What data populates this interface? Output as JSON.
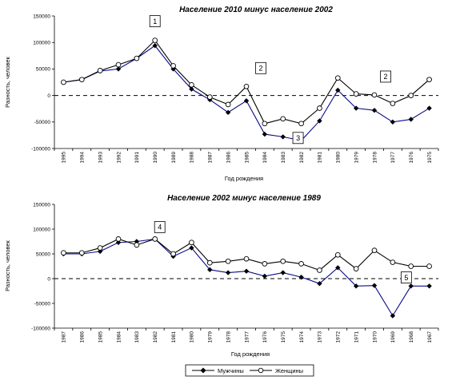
{
  "legend": {
    "men": "Мужчины",
    "women": "Женщины"
  },
  "chart_data": [
    {
      "type": "line",
      "title": "Население 2010 минус население 2002",
      "xlabel": "Год рождения",
      "ylabel": "Разность, человек",
      "ylim": [
        -100000,
        150000
      ],
      "yticks": [
        -100000,
        -50000,
        0,
        50000,
        100000,
        150000
      ],
      "categories": [
        "1995",
        "1994",
        "1993",
        "1992",
        "1991",
        "1990",
        "1989",
        "1988",
        "1987",
        "1986",
        "1985",
        "1984",
        "1983",
        "1982",
        "1981",
        "1980",
        "1979",
        "1978",
        "1977",
        "1976",
        "1975"
      ],
      "series": [
        {
          "name": "Мужчины",
          "marker": "filled-diamond",
          "values": [
            25000,
            30000,
            46000,
            50000,
            70000,
            94000,
            50000,
            12000,
            -8000,
            -32000,
            -10000,
            -73000,
            -78000,
            -85000,
            -48000,
            10000,
            -24000,
            -28000,
            -50000,
            -45000,
            -24000
          ]
        },
        {
          "name": "Женщины",
          "marker": "open-circle",
          "values": [
            25000,
            30000,
            47000,
            58000,
            70000,
            104000,
            56000,
            20000,
            -3000,
            -17000,
            17000,
            -53000,
            -44000,
            -53000,
            -24000,
            33000,
            3000,
            1000,
            -15000,
            0,
            30000
          ]
        }
      ],
      "reference_line": 0,
      "callouts": [
        {
          "label": "1",
          "category": "1990"
        },
        {
          "label": "2",
          "category": "1985"
        },
        {
          "label": "3",
          "category": "1982"
        },
        {
          "label": "2",
          "category": "1978"
        }
      ]
    },
    {
      "type": "line",
      "title": "Население 2002 минус население 1989",
      "xlabel": "Год рождения",
      "ylabel": "Разность, человек",
      "ylim": [
        -100000,
        150000
      ],
      "yticks": [
        -100000,
        -50000,
        0,
        50000,
        100000,
        150000
      ],
      "categories": [
        "1987",
        "1986",
        "1985",
        "1984",
        "1983",
        "1982",
        "1981",
        "1980",
        "1979",
        "1978",
        "1977",
        "1976",
        "1975",
        "1974",
        "1973",
        "1972",
        "1971",
        "1970",
        "1969",
        "1968",
        "1967"
      ],
      "series": [
        {
          "name": "Мужчины",
          "marker": "filled-diamond",
          "values": [
            50000,
            50000,
            55000,
            73000,
            75000,
            80000,
            45000,
            62000,
            18000,
            12000,
            15000,
            5000,
            12000,
            3000,
            -10000,
            22000,
            -15000,
            -14000,
            -75000,
            -15000,
            -15000
          ]
        },
        {
          "name": "Женщины",
          "marker": "open-circle",
          "values": [
            52000,
            52000,
            62000,
            80000,
            68000,
            80000,
            50000,
            73000,
            32000,
            35000,
            40000,
            30000,
            35000,
            30000,
            17000,
            48000,
            20000,
            57000,
            33000,
            25000,
            25000
          ]
        }
      ],
      "reference_line": 0,
      "callouts": [
        {
          "label": "4",
          "category": "1982"
        },
        {
          "label": "5",
          "category": "1969"
        }
      ]
    }
  ]
}
